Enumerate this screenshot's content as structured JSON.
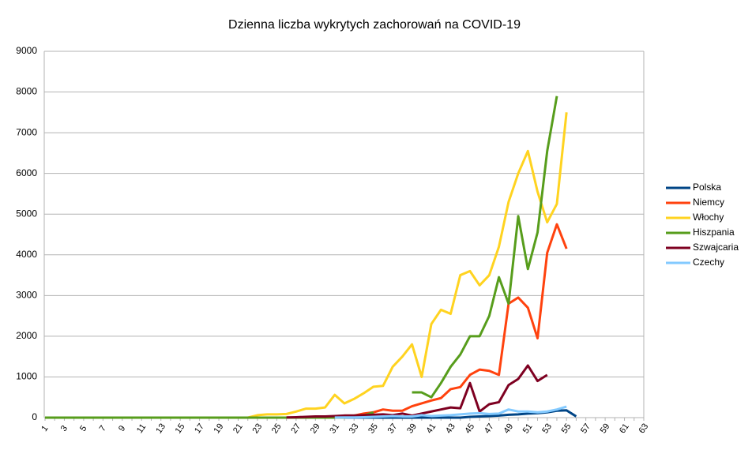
{
  "chart_data": {
    "type": "line",
    "title": "Dzienna liczba wykrytych zachorowań na COVID-19",
    "categories": [
      1,
      null,
      3,
      null,
      5,
      null,
      7,
      null,
      9,
      null,
      11,
      null,
      13,
      null,
      15,
      null,
      17,
      null,
      19,
      null,
      21,
      null,
      23,
      null,
      25,
      null,
      27,
      null,
      29,
      null,
      31,
      null,
      33,
      null,
      35,
      null,
      37,
      null,
      39,
      null,
      41,
      null,
      43,
      null,
      45,
      null,
      47,
      null,
      49,
      null,
      51,
      null,
      53,
      null,
      55,
      null,
      57,
      null,
      59,
      null,
      61,
      null,
      63
    ],
    "ylim": [
      0,
      9000
    ],
    "yticks": [
      0,
      1000,
      2000,
      3000,
      4000,
      5000,
      6000,
      7000,
      8000,
      9000
    ],
    "grid": true,
    "legend": "right",
    "series": [
      {
        "name": "Polska",
        "color": "#004586",
        "values": [
          0,
          0,
          0,
          0,
          0,
          0,
          0,
          0,
          0,
          0,
          0,
          0,
          0,
          0,
          0,
          0,
          0,
          0,
          0,
          0,
          0,
          0,
          0,
          0,
          0,
          0,
          0,
          0,
          0,
          0,
          0,
          0,
          0,
          0,
          0,
          0,
          0,
          0,
          0,
          0,
          0,
          0,
          0,
          0,
          20,
          30,
          40,
          50,
          70,
          80,
          100,
          110,
          130,
          170,
          180,
          30,
          null,
          null,
          null,
          null,
          null,
          null,
          null
        ]
      },
      {
        "name": "Niemcy",
        "color": "#ff420e",
        "values": [
          0,
          0,
          0,
          0,
          0,
          0,
          0,
          0,
          0,
          0,
          0,
          0,
          0,
          0,
          0,
          0,
          0,
          0,
          0,
          0,
          0,
          0,
          0,
          0,
          0,
          0,
          0,
          0,
          0,
          0,
          0,
          50,
          50,
          100,
          130,
          200,
          170,
          170,
          280,
          350,
          420,
          480,
          700,
          750,
          1050,
          1180,
          1150,
          1050,
          2800,
          2950,
          2700,
          1950,
          4050,
          4750,
          4150,
          null,
          null,
          null,
          null,
          null,
          null,
          null,
          null
        ]
      },
      {
        "name": "Włochy",
        "color": "#ffd320",
        "values": [
          0,
          0,
          0,
          0,
          0,
          0,
          0,
          0,
          0,
          0,
          0,
          0,
          0,
          0,
          0,
          0,
          0,
          0,
          0,
          0,
          0,
          0,
          60,
          80,
          80,
          90,
          150,
          220,
          220,
          250,
          560,
          350,
          460,
          600,
          760,
          780,
          1250,
          1500,
          1800,
          1000,
          2300,
          2650,
          2550,
          3500,
          3600,
          3250,
          3500,
          4200,
          5300,
          6000,
          6550,
          5550,
          4800,
          5250,
          7500,
          null,
          null,
          null,
          null,
          null,
          null,
          null,
          null
        ]
      },
      {
        "name": "Hiszpania",
        "color": "#579d1c",
        "values": [
          0,
          0,
          0,
          0,
          0,
          0,
          0,
          0,
          0,
          0,
          0,
          0,
          0,
          0,
          0,
          0,
          0,
          0,
          0,
          0,
          0,
          0,
          0,
          0,
          0,
          0,
          0,
          0,
          0,
          0,
          0,
          0,
          50,
          50,
          130,
          null,
          null,
          null,
          620,
          620,
          500,
          850,
          1250,
          1550,
          2000,
          2000,
          2500,
          3450,
          2800,
          4950,
          3650,
          4550,
          6550,
          7900,
          null,
          null,
          null,
          null,
          null,
          null,
          null,
          null,
          null
        ]
      },
      {
        "name": "Szwajcaria",
        "color": "#7e0021",
        "values": [
          null,
          null,
          null,
          null,
          null,
          null,
          null,
          null,
          null,
          null,
          null,
          null,
          null,
          null,
          null,
          null,
          null,
          null,
          null,
          null,
          null,
          null,
          null,
          null,
          null,
          5,
          10,
          20,
          30,
          30,
          40,
          50,
          50,
          60,
          70,
          80,
          60,
          100,
          50,
          100,
          150,
          200,
          250,
          230,
          850,
          150,
          330,
          380,
          800,
          950,
          1280,
          900,
          1050,
          null,
          null,
          null,
          null,
          null,
          null,
          null,
          null,
          null,
          null
        ]
      },
      {
        "name": "Czechy",
        "color": "#83caff",
        "values": [
          null,
          null,
          null,
          null,
          null,
          null,
          null,
          null,
          null,
          null,
          null,
          null,
          null,
          null,
          null,
          null,
          null,
          null,
          null,
          null,
          null,
          null,
          null,
          null,
          null,
          null,
          null,
          null,
          null,
          null,
          3,
          5,
          5,
          10,
          20,
          30,
          40,
          30,
          30,
          60,
          40,
          50,
          60,
          80,
          100,
          110,
          90,
          100,
          200,
          150,
          150,
          130,
          150,
          200,
          270,
          null,
          null,
          null,
          null,
          null,
          null,
          null,
          null
        ]
      }
    ]
  }
}
